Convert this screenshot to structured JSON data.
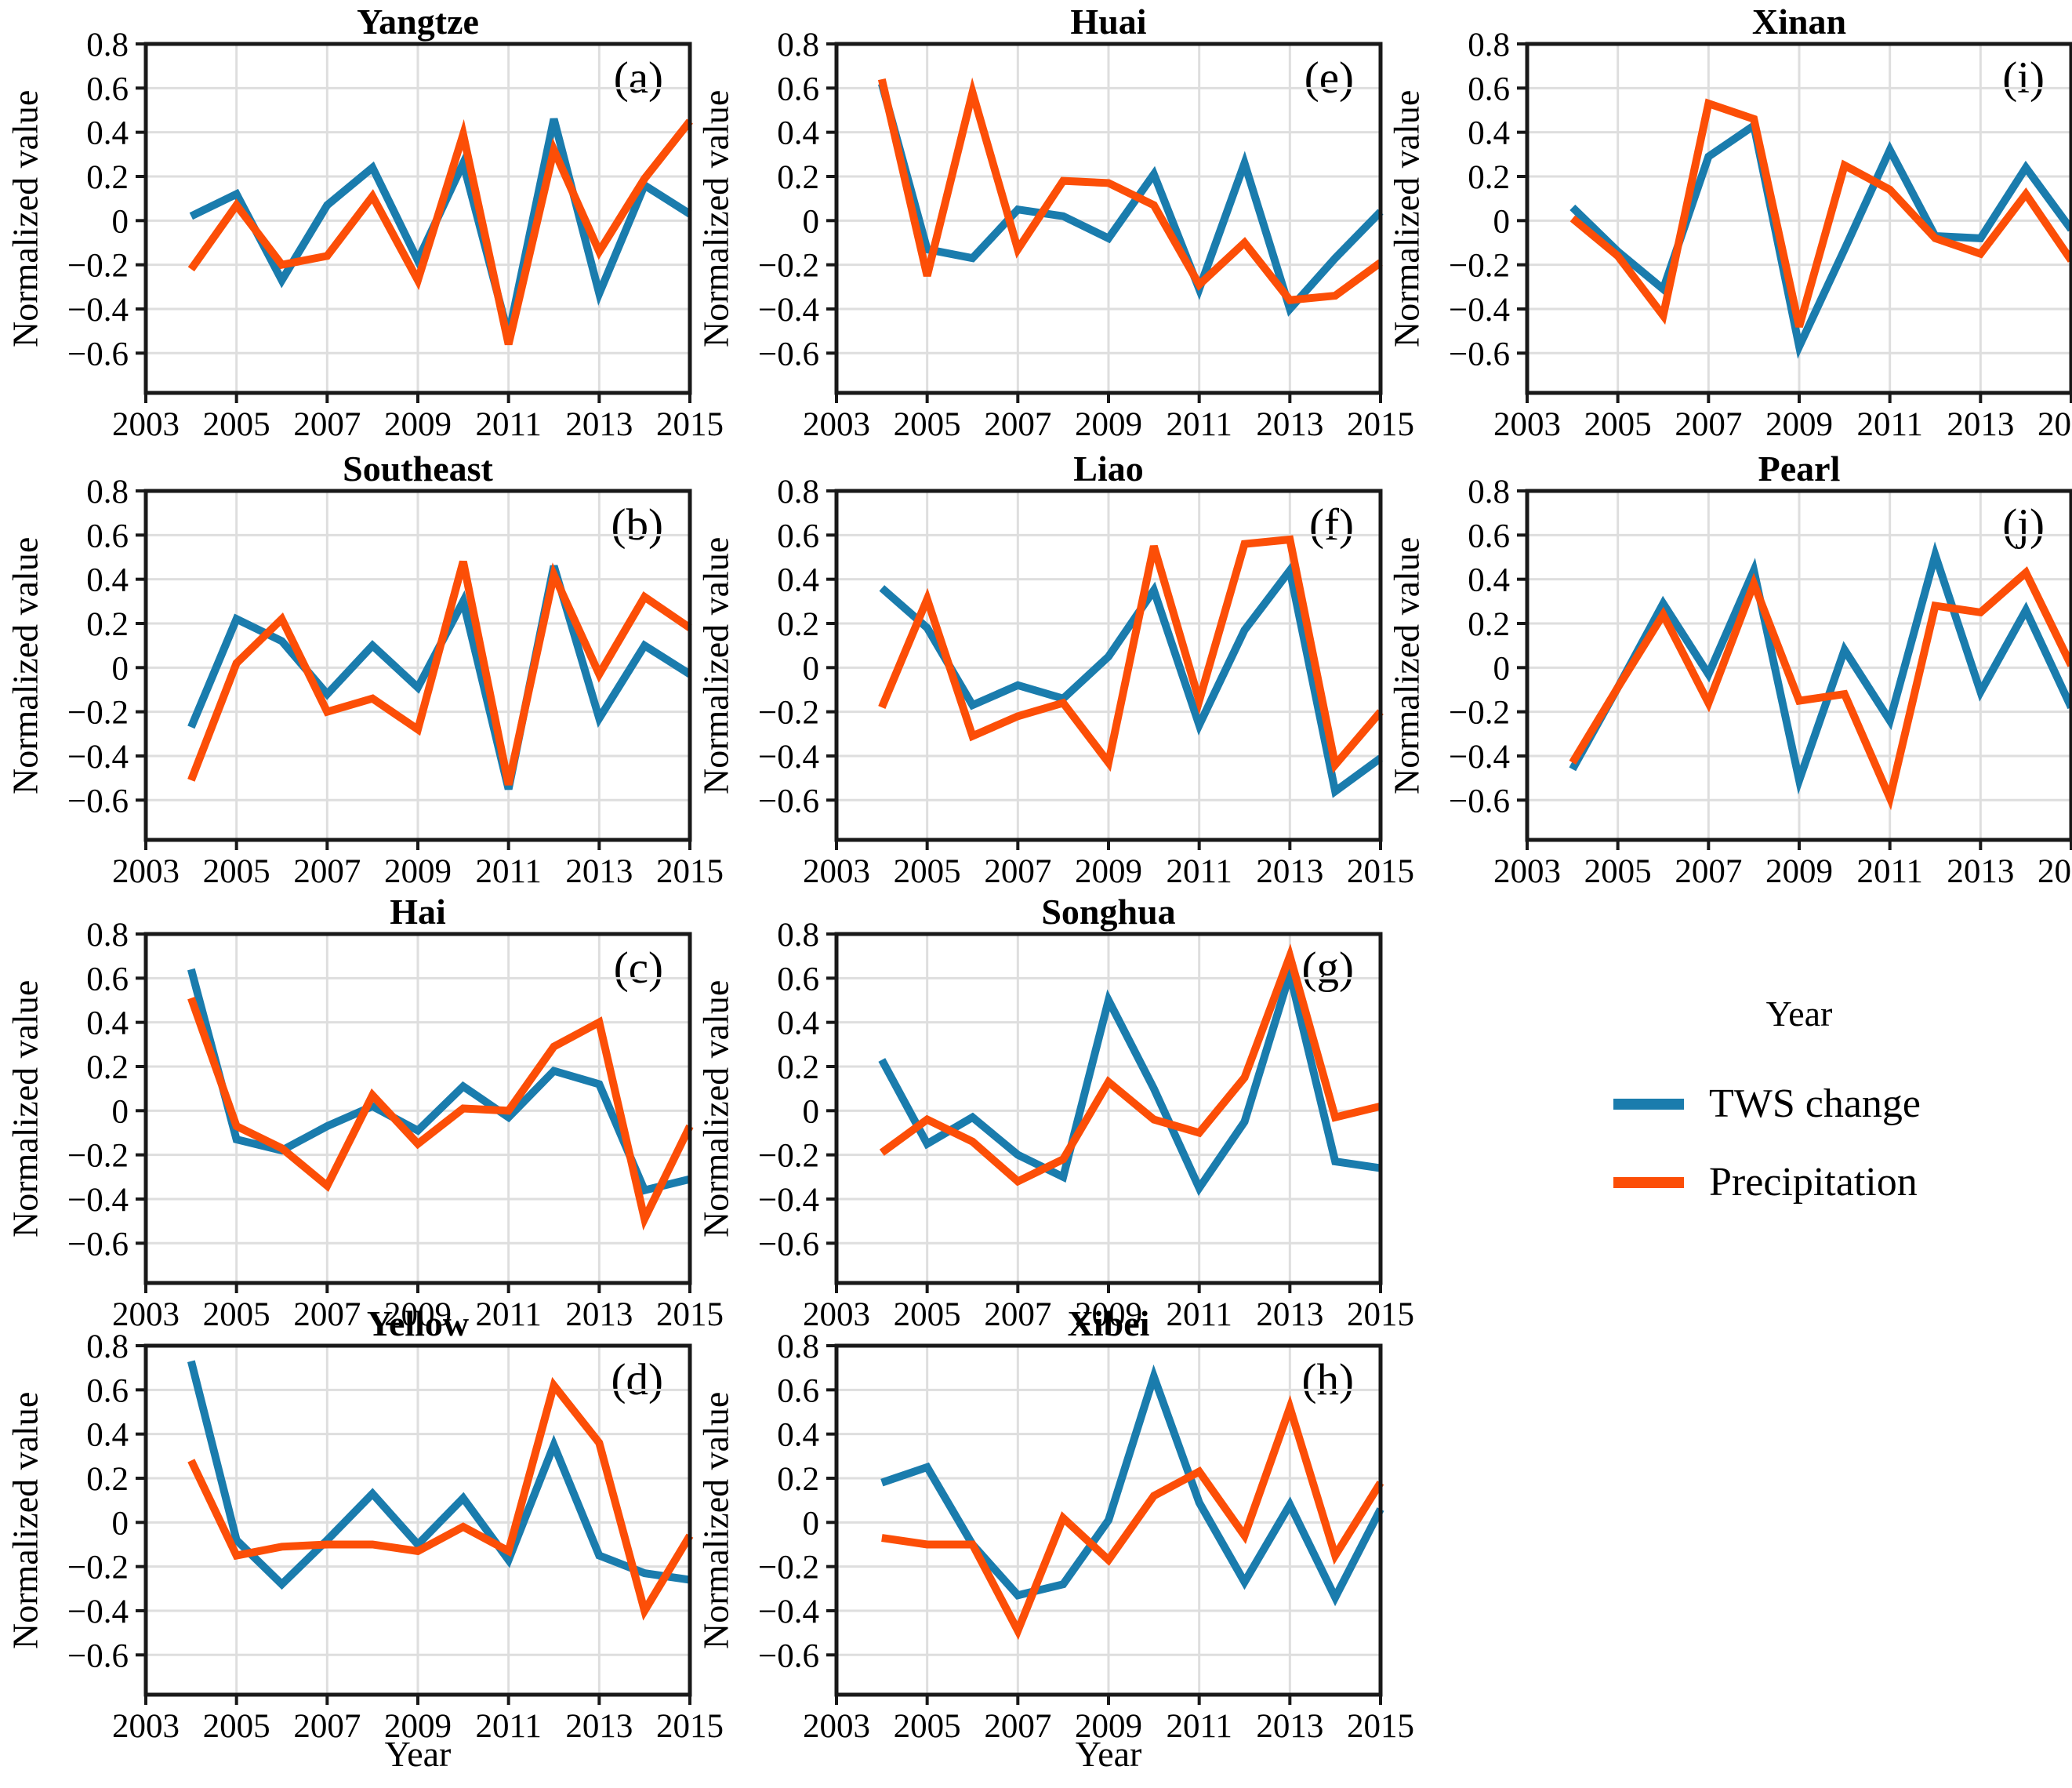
{
  "colors": {
    "tws": "#1a7cad",
    "precipitation": "#fc4e07",
    "grid": "#dedede",
    "frame": "#191919"
  },
  "axes": {
    "y_label": "Normalized value",
    "x_label": "Year",
    "x_range": [
      2003,
      2015
    ],
    "y_range": [
      -0.78,
      0.8
    ],
    "grid": true,
    "x_ticks": [
      {
        "v": 2003,
        "label": "2003"
      },
      {
        "v": 2005,
        "label": "2005"
      },
      {
        "v": 2007,
        "label": "2007"
      },
      {
        "v": 2009,
        "label": "2009"
      },
      {
        "v": 2011,
        "label": "2011"
      },
      {
        "v": 2013,
        "label": "2013"
      },
      {
        "v": 2015,
        "label": "2015"
      }
    ],
    "y_ticks": [
      {
        "v": 0.8,
        "label": "0.8"
      },
      {
        "v": 0.6,
        "label": "0.6"
      },
      {
        "v": 0.4,
        "label": "0.4"
      },
      {
        "v": 0.2,
        "label": "0.2"
      },
      {
        "v": 0.0,
        "label": "0"
      },
      {
        "v": -0.2,
        "label": "−0.2"
      },
      {
        "v": -0.4,
        "label": "−0.4"
      },
      {
        "v": -0.6,
        "label": "−0.6"
      }
    ]
  },
  "legend": {
    "items": [
      {
        "label": "TWS change",
        "color": "#1a7cad"
      },
      {
        "label": "Precipitation",
        "color": "#fc4e07"
      }
    ],
    "position": "right-middle"
  },
  "chart_data": [
    {
      "id": "a",
      "letter": "(a)",
      "title": "Yangtze",
      "type": "line",
      "x": [
        2004,
        2005,
        2006,
        2007,
        2008,
        2009,
        2010,
        2011,
        2012,
        2013,
        2014,
        2015
      ],
      "ylim": [
        -0.78,
        0.8
      ],
      "series": [
        {
          "name": "TWS change",
          "color": "#1a7cad",
          "values": [
            0.02,
            0.12,
            -0.27,
            0.07,
            0.24,
            -0.18,
            0.26,
            -0.52,
            0.46,
            -0.33,
            0.16,
            0.03
          ]
        },
        {
          "name": "Precipitation",
          "color": "#fc4e07",
          "values": [
            -0.22,
            0.07,
            -0.2,
            -0.16,
            0.11,
            -0.27,
            0.39,
            -0.56,
            0.32,
            -0.14,
            0.19,
            0.45
          ]
        }
      ]
    },
    {
      "id": "b",
      "letter": "(b)",
      "title": "Southeast",
      "type": "line",
      "x": [
        2004,
        2005,
        2006,
        2007,
        2008,
        2009,
        2010,
        2011,
        2012,
        2013,
        2014,
        2015
      ],
      "ylim": [
        -0.78,
        0.8
      ],
      "series": [
        {
          "name": "TWS change",
          "color": "#1a7cad",
          "values": [
            -0.27,
            0.22,
            0.12,
            -0.12,
            0.1,
            -0.09,
            0.3,
            -0.55,
            0.46,
            -0.23,
            0.1,
            -0.03
          ]
        },
        {
          "name": "Precipitation",
          "color": "#fc4e07",
          "values": [
            -0.51,
            0.02,
            0.22,
            -0.2,
            -0.14,
            -0.28,
            0.48,
            -0.53,
            0.42,
            -0.03,
            0.32,
            0.18
          ]
        }
      ]
    },
    {
      "id": "c",
      "letter": "(c)",
      "title": "Hai",
      "type": "line",
      "x": [
        2004,
        2005,
        2006,
        2007,
        2008,
        2009,
        2010,
        2011,
        2012,
        2013,
        2014,
        2015
      ],
      "ylim": [
        -0.78,
        0.8
      ],
      "series": [
        {
          "name": "TWS change",
          "color": "#1a7cad",
          "values": [
            0.64,
            -0.13,
            -0.18,
            -0.07,
            0.02,
            -0.09,
            0.11,
            -0.03,
            0.18,
            0.12,
            -0.36,
            -0.31
          ]
        },
        {
          "name": "Precipitation",
          "color": "#fc4e07",
          "values": [
            0.51,
            -0.07,
            -0.17,
            -0.34,
            0.07,
            -0.15,
            0.01,
            0.0,
            0.29,
            0.4,
            -0.49,
            -0.07
          ]
        }
      ]
    },
    {
      "id": "d",
      "letter": "(d)",
      "title": "Yellow",
      "type": "line",
      "x": [
        2004,
        2005,
        2006,
        2007,
        2008,
        2009,
        2010,
        2011,
        2012,
        2013,
        2014,
        2015
      ],
      "ylim": [
        -0.78,
        0.8
      ],
      "series": [
        {
          "name": "TWS change",
          "color": "#1a7cad",
          "values": [
            0.73,
            -0.08,
            -0.28,
            -0.08,
            0.13,
            -0.1,
            0.11,
            -0.17,
            0.35,
            -0.15,
            -0.23,
            -0.26
          ]
        },
        {
          "name": "Precipitation",
          "color": "#fc4e07",
          "values": [
            0.28,
            -0.15,
            -0.11,
            -0.1,
            -0.1,
            -0.13,
            -0.02,
            -0.13,
            0.62,
            0.36,
            -0.4,
            -0.06
          ]
        }
      ]
    },
    {
      "id": "e",
      "letter": "(e)",
      "title": "Huai",
      "type": "line",
      "x": [
        2004,
        2005,
        2006,
        2007,
        2008,
        2009,
        2010,
        2011,
        2012,
        2013,
        2014,
        2015
      ],
      "ylim": [
        -0.78,
        0.8
      ],
      "series": [
        {
          "name": "TWS change",
          "color": "#1a7cad",
          "values": [
            0.62,
            -0.13,
            -0.17,
            0.05,
            0.02,
            -0.08,
            0.21,
            -0.31,
            0.26,
            -0.4,
            -0.17,
            0.04
          ]
        },
        {
          "name": "Precipitation",
          "color": "#fc4e07",
          "values": [
            0.64,
            -0.25,
            0.58,
            -0.13,
            0.18,
            0.17,
            0.07,
            -0.29,
            -0.1,
            -0.36,
            -0.34,
            -0.19
          ]
        }
      ]
    },
    {
      "id": "f",
      "letter": "(f)",
      "title": "Liao",
      "type": "line",
      "x": [
        2004,
        2005,
        2006,
        2007,
        2008,
        2009,
        2010,
        2011,
        2012,
        2013,
        2014,
        2015
      ],
      "ylim": [
        -0.78,
        0.8
      ],
      "series": [
        {
          "name": "TWS change",
          "color": "#1a7cad",
          "values": [
            0.36,
            0.18,
            -0.17,
            -0.08,
            -0.14,
            0.05,
            0.35,
            -0.26,
            0.17,
            0.44,
            -0.56,
            -0.41
          ]
        },
        {
          "name": "Precipitation",
          "color": "#fc4e07",
          "values": [
            -0.18,
            0.31,
            -0.31,
            -0.22,
            -0.16,
            -0.43,
            0.55,
            -0.15,
            0.56,
            0.58,
            -0.44,
            -0.2
          ]
        }
      ]
    },
    {
      "id": "g",
      "letter": "(g)",
      "title": "Songhua",
      "type": "line",
      "x": [
        2004,
        2005,
        2006,
        2007,
        2008,
        2009,
        2010,
        2011,
        2012,
        2013,
        2014,
        2015
      ],
      "ylim": [
        -0.78,
        0.8
      ],
      "series": [
        {
          "name": "TWS change",
          "color": "#1a7cad",
          "values": [
            0.23,
            -0.15,
            -0.03,
            -0.2,
            -0.3,
            0.5,
            0.1,
            -0.35,
            -0.05,
            0.62,
            -0.23,
            -0.26
          ]
        },
        {
          "name": "Precipitation",
          "color": "#fc4e07",
          "values": [
            -0.19,
            -0.04,
            -0.14,
            -0.32,
            -0.22,
            0.13,
            -0.04,
            -0.1,
            0.15,
            0.7,
            -0.03,
            0.02
          ]
        }
      ]
    },
    {
      "id": "h",
      "letter": "(h)",
      "title": "Xibei",
      "type": "line",
      "x": [
        2004,
        2005,
        2006,
        2007,
        2008,
        2009,
        2010,
        2011,
        2012,
        2013,
        2014,
        2015
      ],
      "ylim": [
        -0.78,
        0.8
      ],
      "series": [
        {
          "name": "TWS change",
          "color": "#1a7cad",
          "values": [
            0.18,
            0.25,
            -0.1,
            -0.33,
            -0.28,
            0.01,
            0.66,
            0.09,
            -0.27,
            0.08,
            -0.34,
            0.06
          ]
        },
        {
          "name": "Precipitation",
          "color": "#fc4e07",
          "values": [
            -0.07,
            -0.1,
            -0.1,
            -0.49,
            0.02,
            -0.17,
            0.12,
            0.23,
            -0.06,
            0.52,
            -0.15,
            0.18
          ]
        }
      ]
    },
    {
      "id": "i",
      "letter": "(i)",
      "title": "Xinan",
      "type": "line",
      "x": [
        2004,
        2005,
        2006,
        2007,
        2008,
        2009,
        2010,
        2011,
        2012,
        2013,
        2014,
        2015
      ],
      "ylim": [
        -0.78,
        0.8
      ],
      "series": [
        {
          "name": "TWS change",
          "color": "#1a7cad",
          "values": [
            0.06,
            -0.14,
            -0.31,
            0.29,
            0.43,
            -0.57,
            -0.13,
            0.32,
            -0.07,
            -0.08,
            0.24,
            -0.04
          ]
        },
        {
          "name": "Precipitation",
          "color": "#fc4e07",
          "values": [
            0.01,
            -0.16,
            -0.43,
            0.53,
            0.46,
            -0.48,
            0.25,
            0.14,
            -0.08,
            -0.15,
            0.12,
            -0.18
          ]
        }
      ]
    },
    {
      "id": "j",
      "letter": "(j)",
      "title": "Pearl",
      "type": "line",
      "x": [
        2004,
        2005,
        2006,
        2007,
        2008,
        2009,
        2010,
        2011,
        2012,
        2013,
        2014,
        2015
      ],
      "ylim": [
        -0.78,
        0.8
      ],
      "series": [
        {
          "name": "TWS change",
          "color": "#1a7cad",
          "values": [
            -0.46,
            -0.09,
            0.29,
            -0.03,
            0.44,
            -0.51,
            0.08,
            -0.24,
            0.51,
            -0.11,
            0.26,
            -0.18
          ]
        },
        {
          "name": "Precipitation",
          "color": "#fc4e07",
          "values": [
            -0.43,
            -0.09,
            0.24,
            -0.16,
            0.38,
            -0.15,
            -0.12,
            -0.59,
            0.28,
            0.25,
            0.43,
            0.01
          ]
        }
      ]
    }
  ]
}
